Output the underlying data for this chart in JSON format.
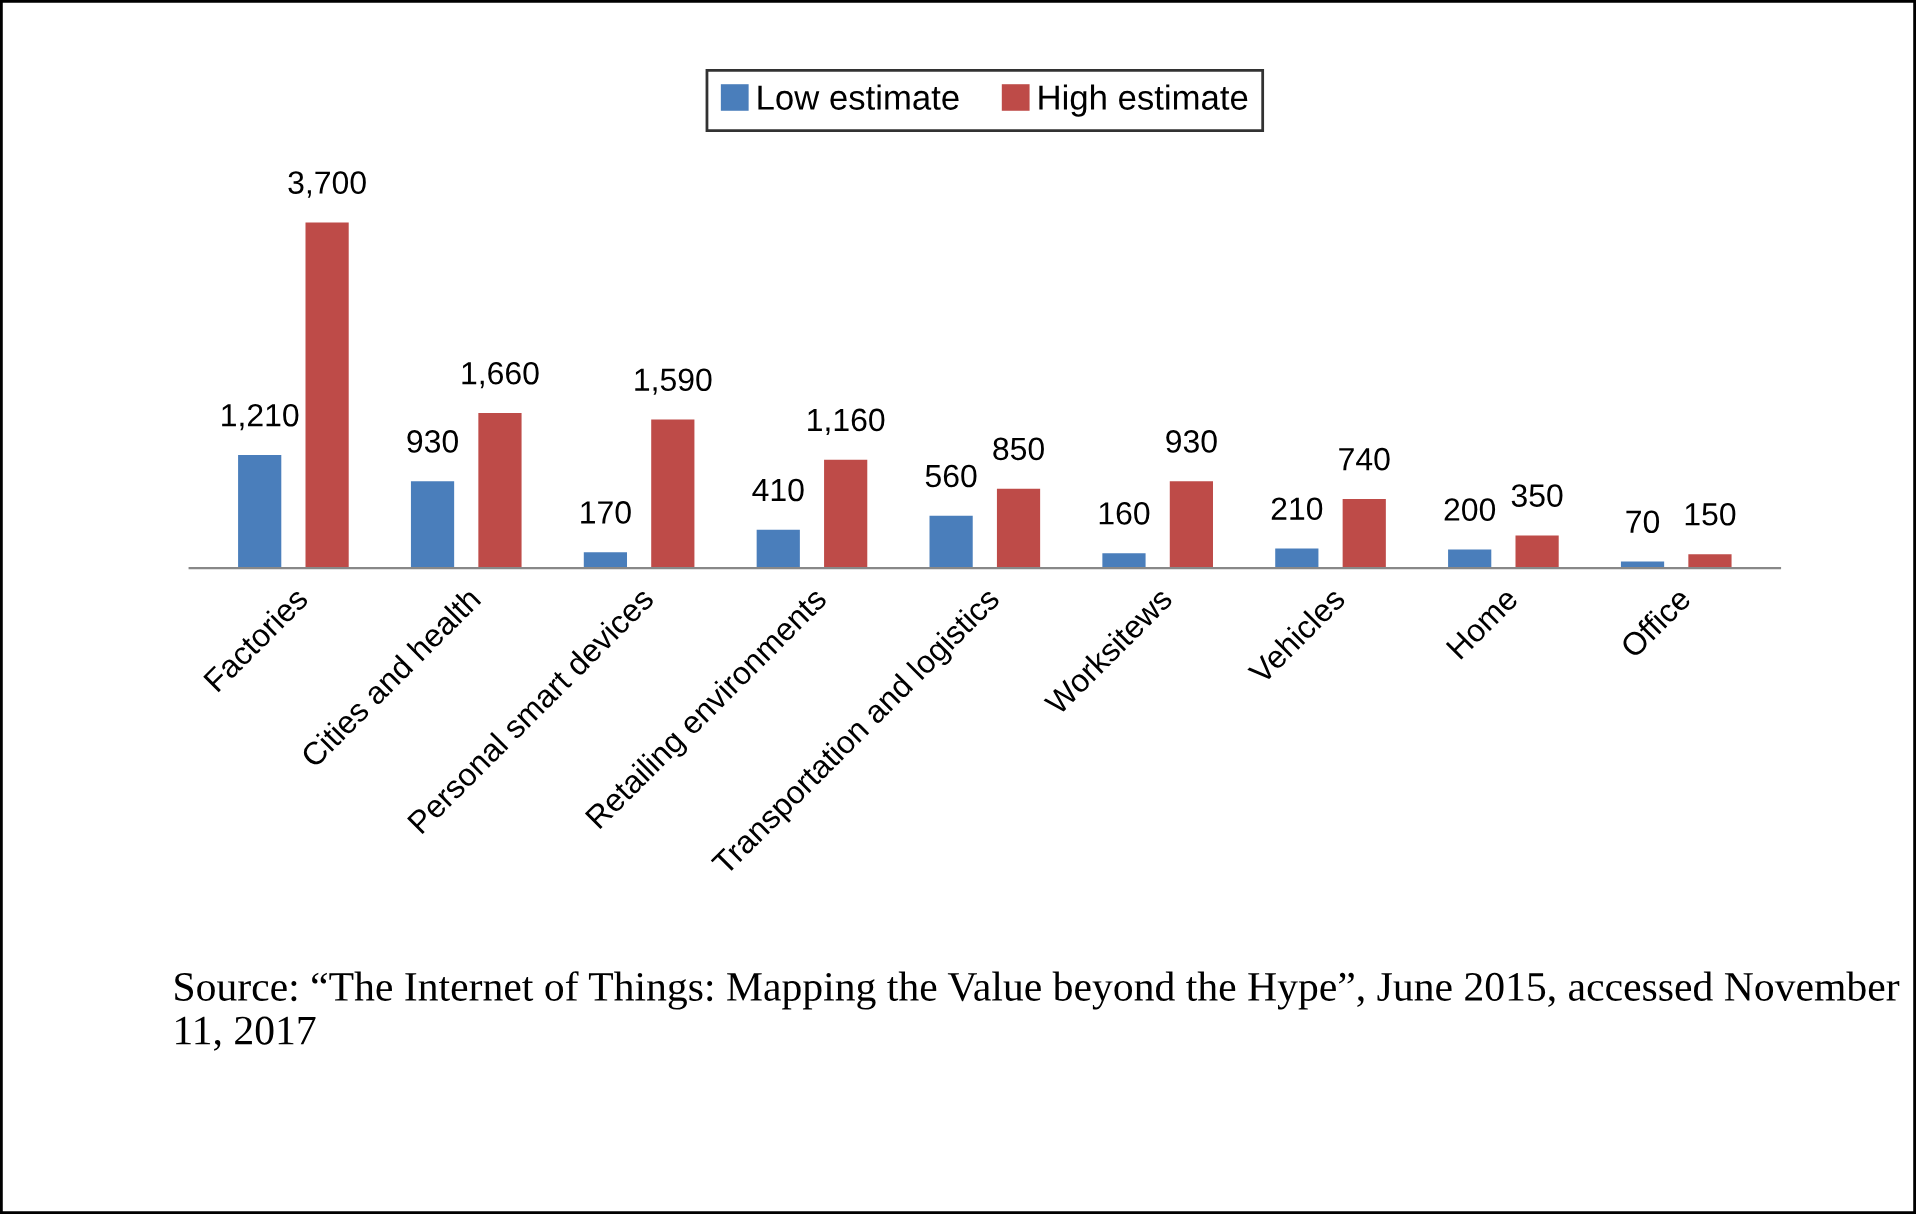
{
  "chart_data": {
    "type": "bar",
    "categories": [
      "Factories",
      "Cities and health",
      "Personal smart devices",
      "Retailing environments",
      "Transportation and logistics",
      "Worksitews",
      "Vehicles",
      "Home",
      "Office"
    ],
    "series": [
      {
        "name": "Low estimate",
        "color": "#4a7ebb",
        "values": [
          1210,
          930,
          170,
          410,
          560,
          160,
          210,
          200,
          70
        ],
        "value_labels": [
          "1,210",
          "930",
          "170",
          "410",
          "560",
          "160",
          "210",
          "200",
          "70"
        ]
      },
      {
        "name": "High estimate",
        "color": "#be4b48",
        "values": [
          3700,
          1660,
          1590,
          1160,
          850,
          930,
          740,
          350,
          150
        ],
        "value_labels": [
          "3,700",
          "1,660",
          "1,590",
          "1,160",
          "850",
          "930",
          "740",
          "350",
          "150"
        ]
      }
    ],
    "legend": "top",
    "grid": false,
    "annotations": [
      "Source: “The Internet of Things: Mapping the Value beyond the Hype”, June 2015, accessed November 11, 2017"
    ]
  }
}
